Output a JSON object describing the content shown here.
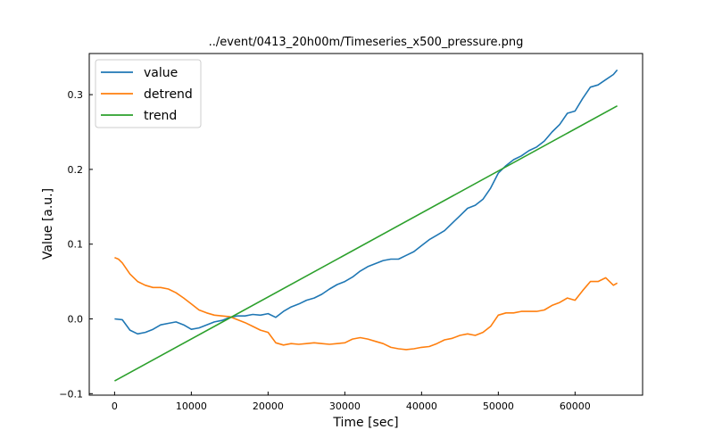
{
  "chart_data": {
    "type": "line",
    "title": "../event/0413_20h00m/Timeseries_x500_pressure.png",
    "xlabel": "Time [sec]",
    "ylabel": "Value [a.u.]",
    "xlim": [
      -3300,
      68800
    ],
    "ylim": [
      -0.102,
      0.355
    ],
    "xticks": [
      0,
      10000,
      20000,
      30000,
      40000,
      50000,
      60000
    ],
    "xtick_labels": [
      "0",
      "10000",
      "20000",
      "30000",
      "40000",
      "50000",
      "60000"
    ],
    "yticks": [
      -0.1,
      0.0,
      0.1,
      0.2,
      0.3
    ],
    "ytick_labels": [
      "−0.1",
      "0.0",
      "0.1",
      "0.2",
      "0.3"
    ],
    "grid": false,
    "legend_position": "top-left",
    "series": [
      {
        "name": "value",
        "color": "#1f77b4",
        "x": [
          0,
          1000,
          2000,
          3000,
          4000,
          5000,
          6000,
          7000,
          8000,
          9000,
          10000,
          11000,
          12000,
          13000,
          14000,
          15000,
          16000,
          17000,
          18000,
          19000,
          20000,
          21000,
          22000,
          23000,
          24000,
          25000,
          26000,
          27000,
          28000,
          29000,
          30000,
          31000,
          32000,
          33000,
          34000,
          35000,
          36000,
          37000,
          38000,
          39000,
          40000,
          41000,
          42000,
          43000,
          44000,
          45000,
          46000,
          47000,
          48000,
          49000,
          50000,
          51000,
          52000,
          53000,
          54000,
          55000,
          56000,
          57000,
          58000,
          59000,
          60000,
          61000,
          62000,
          63000,
          64000,
          65000,
          65500
        ],
        "y": [
          0.0,
          -0.001,
          -0.015,
          -0.02,
          -0.018,
          -0.014,
          -0.008,
          -0.006,
          -0.004,
          -0.008,
          -0.014,
          -0.012,
          -0.008,
          -0.004,
          -0.002,
          0.002,
          0.004,
          0.004,
          0.006,
          0.005,
          0.007,
          0.002,
          0.01,
          0.016,
          0.02,
          0.025,
          0.028,
          0.033,
          0.04,
          0.046,
          0.05,
          0.056,
          0.064,
          0.07,
          0.074,
          0.078,
          0.08,
          0.08,
          0.085,
          0.09,
          0.098,
          0.106,
          0.112,
          0.118,
          0.128,
          0.138,
          0.148,
          0.152,
          0.16,
          0.175,
          0.195,
          0.205,
          0.213,
          0.218,
          0.225,
          0.23,
          0.238,
          0.25,
          0.26,
          0.275,
          0.278,
          0.295,
          0.31,
          0.313,
          0.32,
          0.327,
          0.333
        ]
      },
      {
        "name": "detrend",
        "color": "#ff7f0e",
        "x": [
          0,
          500,
          1000,
          2000,
          3000,
          4000,
          5000,
          6000,
          7000,
          8000,
          9000,
          10000,
          11000,
          12000,
          13000,
          14000,
          15000,
          16000,
          17000,
          18000,
          19000,
          20000,
          21000,
          22000,
          23000,
          24000,
          25000,
          26000,
          27000,
          28000,
          29000,
          30000,
          31000,
          32000,
          33000,
          34000,
          35000,
          36000,
          37000,
          38000,
          39000,
          40000,
          41000,
          42000,
          43000,
          44000,
          45000,
          46000,
          47000,
          48000,
          49000,
          50000,
          51000,
          52000,
          53000,
          54000,
          55000,
          56000,
          57000,
          58000,
          59000,
          60000,
          61000,
          62000,
          63000,
          64000,
          65000,
          65500
        ],
        "y": [
          0.082,
          0.08,
          0.075,
          0.06,
          0.05,
          0.045,
          0.042,
          0.042,
          0.04,
          0.035,
          0.028,
          0.02,
          0.012,
          0.008,
          0.005,
          0.004,
          0.003,
          -0.001,
          -0.005,
          -0.01,
          -0.015,
          -0.018,
          -0.032,
          -0.035,
          -0.033,
          -0.034,
          -0.033,
          -0.032,
          -0.033,
          -0.034,
          -0.033,
          -0.032,
          -0.027,
          -0.025,
          -0.027,
          -0.03,
          -0.033,
          -0.038,
          -0.04,
          -0.041,
          -0.04,
          -0.038,
          -0.037,
          -0.033,
          -0.028,
          -0.026,
          -0.022,
          -0.02,
          -0.022,
          -0.018,
          -0.01,
          0.005,
          0.008,
          0.008,
          0.01,
          0.01,
          0.01,
          0.012,
          0.018,
          0.022,
          0.028,
          0.025,
          0.038,
          0.05,
          0.05,
          0.055,
          0.045,
          0.048
        ]
      },
      {
        "name": "trend",
        "color": "#2ca02c",
        "x": [
          0,
          65500
        ],
        "y": [
          -0.083,
          0.285
        ]
      }
    ]
  }
}
